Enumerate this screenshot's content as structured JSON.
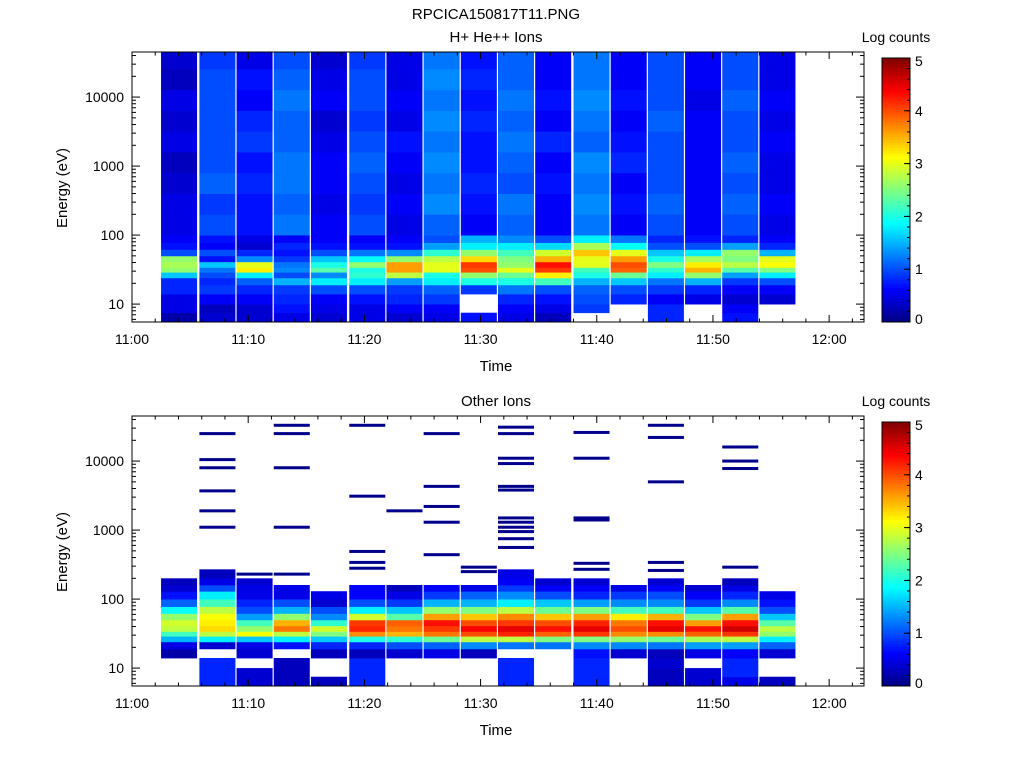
{
  "figure": {
    "title": "RPCICA150817T11.PNG",
    "background": "#ffffff",
    "colormap": [
      "#000080",
      "#0000ff",
      "#0080ff",
      "#00ffff",
      "#80ff80",
      "#ffff00",
      "#ff8000",
      "#ff0000",
      "#800000"
    ]
  },
  "chart_data": [
    {
      "type": "heatmap",
      "title": "H+ He++ Ions",
      "xlabel": "Time",
      "ylabel": "Energy (eV)",
      "x_tick_labels": [
        "11:00",
        "11:10",
        "11:20",
        "11:30",
        "11:40",
        "11:50",
        "12:00"
      ],
      "x_tick_minutes": [
        0,
        10,
        20,
        30,
        40,
        50,
        60
      ],
      "xlim_minutes": [
        0,
        63
      ],
      "y_scale": "log",
      "ylim": [
        5.5,
        45000
      ],
      "y_tick_labels": [
        "10",
        "100",
        "1000",
        "10000"
      ],
      "y_tick_values": [
        10,
        100,
        1000,
        10000
      ],
      "colorbar": {
        "label": "Log counts",
        "range": [
          0,
          5
        ],
        "tick_labels": [
          "0",
          "1",
          "2",
          "3",
          "4",
          "5"
        ]
      },
      "time_bins_minutes": [
        [
          2.5,
          5.6
        ],
        [
          5.8,
          8.9
        ],
        [
          9.0,
          12.1
        ],
        [
          12.2,
          15.3
        ],
        [
          15.4,
          18.5
        ],
        [
          18.7,
          21.8
        ],
        [
          21.9,
          25.0
        ],
        [
          25.1,
          28.2
        ],
        [
          28.3,
          31.4
        ],
        [
          31.5,
          34.6
        ],
        [
          34.7,
          37.8
        ],
        [
          38.0,
          41.1
        ],
        [
          41.2,
          44.3
        ],
        [
          44.4,
          47.5
        ],
        [
          47.6,
          50.7
        ],
        [
          50.8,
          53.9
        ],
        [
          54.0,
          57.1
        ]
      ],
      "energy_bins_ev": [
        [
          5.6,
          7.5
        ],
        [
          7.5,
          10
        ],
        [
          10,
          14
        ],
        [
          14,
          19
        ],
        [
          19,
          24
        ],
        [
          24,
          29
        ],
        [
          29,
          34
        ],
        [
          34,
          41
        ],
        [
          41,
          50
        ],
        [
          50,
          62
        ],
        [
          62,
          78
        ],
        [
          78,
          100
        ],
        [
          100,
          200
        ],
        [
          200,
          400
        ],
        [
          400,
          800
        ],
        [
          800,
          1600
        ],
        [
          1600,
          3200
        ],
        [
          3200,
          6400
        ],
        [
          6400,
          12800
        ],
        [
          12800,
          25600
        ],
        [
          25600,
          45000
        ]
      ],
      "log_counts": [
        [
          0.2,
          0.5,
          0.5,
          0.8,
          0.8,
          1.6,
          2.6,
          2.7,
          2.6,
          1.0,
          0.7,
          0.6,
          0.5,
          0.5,
          0.4,
          0.3,
          0.5,
          0.4,
          0.5,
          0.3,
          0.4
        ],
        [
          0.4,
          0.3,
          0.6,
          0.9,
          0.8,
          1.0,
          1.2,
          1.6,
          0.7,
          1.0,
          0.6,
          0.7,
          1.0,
          0.9,
          1.1,
          1.0,
          1.0,
          1.0,
          1.0,
          1.0,
          0.9
        ],
        [
          0.4,
          0.4,
          0.6,
          0.8,
          1.1,
          1.8,
          3.2,
          3.0,
          1.3,
          0.8,
          0.4,
          0.5,
          0.7,
          0.7,
          0.8,
          0.7,
          0.9,
          0.8,
          0.6,
          0.7,
          0.5
        ],
        [
          0.5,
          0.7,
          0.8,
          0.9,
          1.5,
          1.0,
          1.3,
          1.2,
          0.9,
          0.7,
          0.8,
          0.6,
          1.2,
          1.1,
          1.2,
          1.2,
          1.1,
          1.1,
          1.2,
          1.1,
          1.0
        ],
        [
          0.4,
          0.5,
          0.6,
          1.0,
          1.8,
          1.3,
          2.3,
          2.0,
          1.6,
          1.0,
          0.7,
          0.6,
          0.6,
          0.5,
          0.6,
          0.6,
          0.5,
          0.4,
          0.6,
          0.5,
          0.4
        ],
        [
          0.5,
          0.5,
          0.7,
          1.0,
          1.8,
          2.1,
          2.0,
          2.6,
          1.9,
          1.2,
          0.7,
          0.6,
          1.0,
          0.9,
          1.0,
          1.1,
          1.0,
          0.9,
          1.0,
          1.0,
          0.9
        ],
        [
          0.4,
          0.6,
          0.8,
          0.9,
          1.4,
          2.8,
          3.6,
          3.6,
          2.6,
          1.3,
          0.7,
          0.6,
          0.5,
          0.6,
          0.5,
          0.6,
          0.7,
          0.5,
          0.6,
          0.5,
          0.5
        ],
        [
          0.5,
          0.6,
          0.9,
          1.1,
          1.8,
          2.0,
          3.0,
          3.0,
          2.8,
          2.1,
          1.4,
          1.0,
          1.1,
          1.3,
          1.2,
          1.3,
          1.2,
          1.3,
          1.2,
          1.3,
          1.2
        ],
        [
          0.7,
          null,
          null,
          0.9,
          2.0,
          2.6,
          4.0,
          4.1,
          3.3,
          2.6,
          1.8,
          1.5,
          0.6,
          0.7,
          0.8,
          0.7,
          0.7,
          0.8,
          0.7,
          0.8,
          0.7
        ],
        [
          0.5,
          0.6,
          0.8,
          1.2,
          2.0,
          2.4,
          3.0,
          2.6,
          2.5,
          2.2,
          1.8,
          1.3,
          1.1,
          1.2,
          1.0,
          1.1,
          1.2,
          1.1,
          1.2,
          1.1,
          1.1
        ],
        [
          0.3,
          0.5,
          0.7,
          1.0,
          2.2,
          3.2,
          4.1,
          4.3,
          3.5,
          2.9,
          1.7,
          1.0,
          0.6,
          0.6,
          0.7,
          0.6,
          0.8,
          0.6,
          0.7,
          0.6,
          0.6
        ],
        [
          null,
          0.9,
          1.0,
          1.1,
          1.5,
          2.0,
          2.2,
          3.0,
          3.0,
          3.4,
          2.7,
          1.8,
          1.2,
          1.3,
          1.2,
          1.3,
          1.1,
          1.2,
          1.3,
          1.2,
          1.2
        ],
        [
          null,
          null,
          0.8,
          1.0,
          1.6,
          2.4,
          3.9,
          4.0,
          3.6,
          3.0,
          1.9,
          1.2,
          0.6,
          0.7,
          0.6,
          0.8,
          0.7,
          0.6,
          0.7,
          0.6,
          0.6
        ],
        [
          0.8,
          0.8,
          0.6,
          0.9,
          1.2,
          1.8,
          2.1,
          2.5,
          2.0,
          1.6,
          1.0,
          0.8,
          1.0,
          1.1,
          1.0,
          1.0,
          1.0,
          1.1,
          1.0,
          1.0,
          1.0
        ],
        [
          null,
          null,
          0.5,
          0.8,
          1.5,
          2.6,
          3.5,
          3.2,
          2.7,
          1.8,
          1.0,
          0.7,
          0.6,
          0.6,
          0.6,
          0.6,
          0.6,
          0.6,
          0.5,
          0.6,
          0.6
        ],
        [
          0.7,
          0.6,
          0.4,
          0.6,
          0.9,
          1.4,
          2.3,
          2.8,
          2.5,
          2.6,
          1.4,
          0.8,
          1.0,
          1.1,
          1.0,
          1.1,
          1.0,
          1.0,
          1.1,
          1.0,
          1.0
        ],
        [
          null,
          null,
          0.4,
          0.6,
          1.0,
          1.8,
          2.5,
          3.1,
          3.0,
          1.5,
          0.8,
          0.6,
          0.5,
          0.6,
          0.5,
          0.5,
          0.6,
          0.5,
          0.6,
          0.5,
          0.5
        ]
      ]
    },
    {
      "type": "heatmap",
      "title": "Other Ions",
      "xlabel": "Time",
      "ylabel": "Energy (eV)",
      "x_tick_labels": [
        "11:00",
        "11:10",
        "11:20",
        "11:30",
        "11:40",
        "11:50",
        "12:00"
      ],
      "x_tick_minutes": [
        0,
        10,
        20,
        30,
        40,
        50,
        60
      ],
      "xlim_minutes": [
        0,
        63
      ],
      "y_scale": "log",
      "ylim": [
        5.5,
        45000
      ],
      "y_tick_labels": [
        "10",
        "100",
        "1000",
        "10000"
      ],
      "y_tick_values": [
        10,
        100,
        1000,
        10000
      ],
      "colorbar": {
        "label": "Log counts",
        "range": [
          0,
          5
        ],
        "tick_labels": [
          "0",
          "1",
          "2",
          "3",
          "4",
          "5"
        ]
      },
      "time_bins_minutes": [
        [
          2.5,
          5.6
        ],
        [
          5.8,
          8.9
        ],
        [
          9.0,
          12.1
        ],
        [
          12.2,
          15.3
        ],
        [
          15.4,
          18.5
        ],
        [
          18.7,
          21.8
        ],
        [
          21.9,
          25.0
        ],
        [
          25.1,
          28.2
        ],
        [
          28.3,
          31.4
        ],
        [
          31.5,
          34.6
        ],
        [
          34.7,
          37.8
        ],
        [
          38.0,
          41.1
        ],
        [
          41.2,
          44.3
        ],
        [
          44.4,
          47.5
        ],
        [
          47.6,
          50.7
        ],
        [
          50.8,
          53.9
        ],
        [
          54.0,
          57.1
        ]
      ],
      "energy_bins_ev": [
        [
          5.6,
          7.5
        ],
        [
          7.5,
          10
        ],
        [
          10,
          14
        ],
        [
          14,
          19
        ],
        [
          19,
          24
        ],
        [
          24,
          29
        ],
        [
          29,
          34
        ],
        [
          34,
          41
        ],
        [
          41,
          50
        ],
        [
          50,
          62
        ],
        [
          62,
          78
        ],
        [
          78,
          100
        ],
        [
          100,
          130
        ],
        [
          130,
          160
        ],
        [
          160,
          200
        ],
        [
          200,
          270
        ]
      ],
      "log_counts": [
        [
          null,
          null,
          null,
          0.2,
          0.5,
          1.5,
          2.2,
          2.8,
          2.9,
          2.6,
          1.9,
          1.1,
          0.7,
          0.4,
          0.3,
          null
        ],
        [
          0.8,
          0.8,
          0.8,
          null,
          0.4,
          1.8,
          2.8,
          3.3,
          3.2,
          3.1,
          2.8,
          2.2,
          1.8,
          1.0,
          0.5,
          0.3
        ],
        [
          0.4,
          0.4,
          null,
          0.4,
          0.5,
          1.6,
          3.1,
          2.6,
          2.2,
          1.4,
          1.0,
          0.8,
          0.5,
          0.5,
          0.4,
          null
        ],
        [
          0.3,
          0.3,
          0.3,
          null,
          0.7,
          1.8,
          2.8,
          3.8,
          3.5,
          2.6,
          1.5,
          1.0,
          0.5,
          0.5,
          null,
          null
        ],
        [
          0.3,
          null,
          null,
          0.3,
          0.8,
          1.6,
          2.5,
          2.9,
          2.1,
          1.3,
          1.0,
          0.4,
          0.5,
          null,
          null,
          null
        ],
        [
          0.8,
          0.8,
          0.8,
          0.3,
          0.8,
          2.0,
          3.7,
          4.2,
          4.1,
          2.9,
          1.8,
          1.0,
          0.6,
          0.6,
          null,
          null
        ],
        [
          null,
          null,
          null,
          0.4,
          1.0,
          2.1,
          3.5,
          3.8,
          3.9,
          2.3,
          1.6,
          0.9,
          0.5,
          0.3,
          null,
          null
        ],
        [
          null,
          null,
          null,
          0.5,
          1.1,
          2.4,
          3.8,
          4.1,
          4.3,
          3.6,
          2.6,
          1.5,
          0.9,
          0.6,
          null,
          null
        ],
        [
          null,
          null,
          null,
          0.3,
          1.3,
          2.8,
          4.0,
          4.4,
          4.0,
          3.4,
          2.5,
          1.5,
          1.1,
          0.5,
          null,
          null
        ],
        [
          0.8,
          0.8,
          0.8,
          null,
          1.2,
          2.8,
          4.2,
          4.5,
          4.1,
          3.7,
          2.8,
          1.8,
          1.3,
          0.9,
          0.6,
          0.5
        ],
        [
          null,
          null,
          null,
          null,
          1.2,
          2.5,
          3.9,
          4.3,
          4.0,
          3.4,
          2.4,
          1.6,
          1.0,
          0.6,
          0.4,
          null
        ],
        [
          0.8,
          0.8,
          0.8,
          0.7,
          1.3,
          2.5,
          4.1,
          4.5,
          4.2,
          3.6,
          2.5,
          1.4,
          0.8,
          0.6,
          0.4,
          null
        ],
        [
          null,
          null,
          null,
          0.4,
          1.3,
          2.6,
          3.7,
          4.0,
          3.8,
          3.2,
          2.2,
          1.3,
          0.9,
          0.5,
          null,
          null
        ],
        [
          0.3,
          0.3,
          0.4,
          0.3,
          1.2,
          2.4,
          3.7,
          4.5,
          4.3,
          3.5,
          2.2,
          1.3,
          1.0,
          0.6,
          0.4,
          null
        ],
        [
          0.4,
          0.4,
          null,
          0.5,
          1.4,
          2.7,
          3.9,
          4.3,
          3.6,
          2.5,
          1.6,
          0.9,
          0.6,
          0.4,
          null,
          null
        ],
        [
          0.5,
          0.8,
          0.8,
          0.6,
          1.4,
          2.8,
          4.1,
          4.6,
          4.3,
          3.6,
          2.3,
          1.3,
          0.8,
          0.5,
          0.3,
          null
        ],
        [
          0.3,
          null,
          null,
          0.4,
          1.1,
          1.8,
          2.6,
          2.8,
          2.3,
          1.6,
          1.0,
          0.7,
          0.5,
          null,
          null,
          null
        ]
      ],
      "sparse_lines": [
        {
          "bin": 1,
          "energies_ev": [
            1100,
            1900,
            3700,
            8000,
            10500,
            25000
          ]
        },
        {
          "bin": 2,
          "energies_ev": [
            230
          ]
        },
        {
          "bin": 3,
          "energies_ev": [
            230,
            1100,
            8000,
            25000,
            33000
          ]
        },
        {
          "bin": 5,
          "energies_ev": [
            280,
            340,
            490,
            3100,
            33000
          ]
        },
        {
          "bin": 6,
          "energies_ev": [
            1900
          ]
        },
        {
          "bin": 7,
          "energies_ev": [
            440,
            1300,
            2200,
            4300,
            25000
          ]
        },
        {
          "bin": 8,
          "energies_ev": [
            250,
            290
          ]
        },
        {
          "bin": 9,
          "energies_ev": [
            560,
            750,
            950,
            1100,
            1300,
            1500,
            3800,
            4300,
            9200,
            11000,
            25000,
            31000
          ]
        },
        {
          "bin": 11,
          "energies_ev": [
            270,
            330,
            1400,
            1500,
            11000,
            26000
          ]
        },
        {
          "bin": 13,
          "energies_ev": [
            260,
            340,
            5000,
            22000,
            33000
          ]
        },
        {
          "bin": 15,
          "energies_ev": [
            290,
            7800,
            10000,
            16000
          ]
        }
      ]
    }
  ]
}
